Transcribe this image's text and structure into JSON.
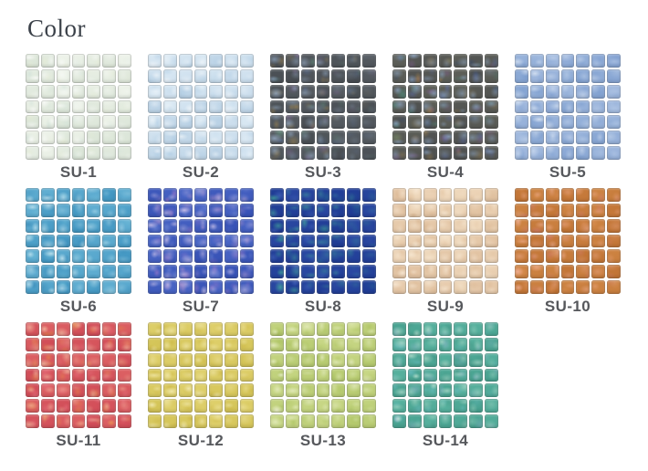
{
  "page": {
    "heading": "Color",
    "background": "#ffffff",
    "heading_color": "#3b4149",
    "label_color": "#56585c"
  },
  "grid": {
    "tiles_per_row": 7,
    "tiles_per_column": 7,
    "rows": [
      [
        "SU-1",
        "SU-2",
        "SU-3",
        "SU-4",
        "SU-5"
      ],
      [
        "SU-6",
        "SU-7",
        "SU-8",
        "SU-9",
        "SU-10"
      ],
      [
        "SU-11",
        "SU-12",
        "SU-13",
        "SU-14"
      ]
    ]
  },
  "swatches": [
    {
      "label": "SU-1",
      "base": "#d9e4d6",
      "light": "#eef3ea",
      "highlight": "#ffffff",
      "accents": [
        "#cfe0d8",
        "#e6ecd2"
      ],
      "sparkle": 0.85,
      "falloff": 0.55
    },
    {
      "label": "SU-2",
      "base": "#b9d1e5",
      "light": "#d9e8f3",
      "highlight": "#ffffff",
      "accents": [
        "#a6c6e0"
      ],
      "sparkle": 0.8,
      "falloff": 0.5
    },
    {
      "label": "SU-3",
      "base": "#474c51",
      "light": "#565c62",
      "highlight": "#9db4cf",
      "accents": [
        "#5f7ab0",
        "#66a086",
        "#8e6ca8",
        "#b09050"
      ],
      "sparkle": 0.8,
      "falloff": 0.75
    },
    {
      "label": "SU-4",
      "base": "#4e5050",
      "light": "#5d5f58",
      "highlight": "#8fa8c8",
      "accents": [
        "#5a6fb8",
        "#8a5f9e",
        "#b08a4a",
        "#4f8a7a",
        "#31486e"
      ],
      "sparkle": 0.95,
      "falloff": 0.25
    },
    {
      "label": "SU-5",
      "base": "#84a3d2",
      "light": "#a3bbdf",
      "highlight": "#eef4fb",
      "accents": [
        "#6f93c8"
      ],
      "sparkle": 0.8,
      "falloff": 0.6
    },
    {
      "label": "SU-6",
      "base": "#3d93c0",
      "light": "#62afd2",
      "highlight": "#d9f1f7",
      "accents": [
        "#2f7fae",
        "#7fc8de"
      ],
      "sparkle": 0.85,
      "falloff": 0.5
    },
    {
      "label": "SU-7",
      "base": "#3550b4",
      "light": "#4a66c6",
      "highlight": "#e3d3ef",
      "accents": [
        "#c183cc",
        "#7f96dc",
        "#e0a8d0"
      ],
      "sparkle": 0.9,
      "falloff": 0.35
    },
    {
      "label": "SU-8",
      "base": "#1e3a92",
      "light": "#2a48a2",
      "highlight": "#49b49c",
      "accents": [
        "#2f9e8e",
        "#5578cc"
      ],
      "sparkle": 0.85,
      "falloff": 0.7
    },
    {
      "label": "SU-9",
      "base": "#e0c09f",
      "light": "#efd9bd",
      "highlight": "#fdf3e3",
      "accents": [
        "#d4ab82"
      ],
      "sparkle": 0.8,
      "falloff": 0.55
    },
    {
      "label": "SU-10",
      "base": "#bf7133",
      "light": "#cd8443",
      "highlight": "#f3b49e",
      "accents": [
        "#e89a63",
        "#d87f86"
      ],
      "sparkle": 0.85,
      "falloff": 0.45
    },
    {
      "label": "SU-11",
      "base": "#d04a57",
      "light": "#dc6063",
      "highlight": "#f6c3a6",
      "accents": [
        "#e8923f",
        "#ef7f8e",
        "#f3b95a"
      ],
      "sparkle": 0.9,
      "falloff": 0.35
    },
    {
      "label": "SU-12",
      "base": "#d2c254",
      "light": "#dfd06c",
      "highlight": "#f8f1c4",
      "accents": [
        "#c8b23e"
      ],
      "sparkle": 0.85,
      "falloff": 0.4
    },
    {
      "label": "SU-13",
      "base": "#b3c86c",
      "light": "#c8d786",
      "highlight": "#f4f7dd",
      "accents": [
        "#9db84e"
      ],
      "sparkle": 0.85,
      "falloff": 0.4
    },
    {
      "label": "SU-14",
      "base": "#459f8d",
      "light": "#57b19e",
      "highlight": "#cdebdc",
      "accents": [
        "#72c2cf",
        "#9fb7d8",
        "#3c8a7a"
      ],
      "sparkle": 0.85,
      "falloff": 0.45
    }
  ]
}
